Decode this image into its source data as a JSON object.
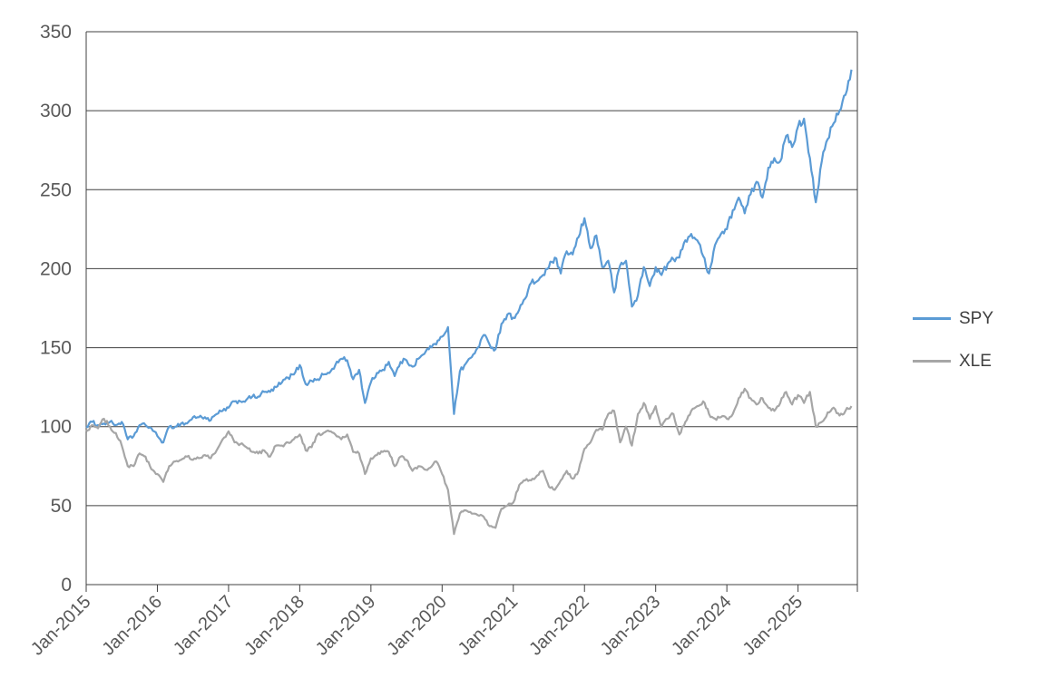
{
  "chart_data": {
    "type": "line",
    "title": "",
    "xlabel": "",
    "ylabel": "",
    "ylim": [
      0,
      350
    ],
    "y_ticks": [
      0,
      50,
      100,
      150,
      200,
      250,
      300,
      350
    ],
    "x_tick_labels": [
      "Jan-2015",
      "Jan-2016",
      "Jan-2017",
      "Jan-2018",
      "Jan-2019",
      "Jan-2020",
      "Jan-2021",
      "Jan-2022",
      "Jan-2023",
      "Jan-2024",
      "Jan-2025"
    ],
    "x_domain_months": 130,
    "grid_on": true,
    "grid_color": "#404040",
    "text_color": "#595959",
    "legend_position": "right",
    "series": [
      {
        "name": "SPY",
        "color": "#5B9BD5",
        "values": [
          100,
          103,
          101,
          102,
          103,
          101,
          103,
          92,
          94,
          101,
          101,
          99,
          94,
          90,
          100,
          100,
          102,
          102,
          106,
          106,
          106,
          104,
          108,
          110,
          112,
          116,
          116,
          117,
          119,
          119,
          122,
          122,
          125,
          128,
          131,
          133,
          139,
          127,
          129,
          130,
          133,
          134,
          139,
          143,
          142,
          130,
          136,
          115,
          128,
          134,
          136,
          141,
          132,
          141,
          142,
          138,
          143,
          146,
          151,
          152,
          157,
          163,
          108,
          135,
          140,
          144,
          150,
          158,
          152,
          149,
          165,
          171,
          169,
          174,
          181,
          191,
          192,
          196,
          201,
          207,
          197,
          211,
          209,
          220,
          232,
          213,
          221,
          201,
          205,
          185,
          202,
          205,
          176,
          183,
          201,
          189,
          201,
          196,
          203,
          206,
          207,
          218,
          222,
          218,
          208,
          197,
          215,
          222,
          225,
          237,
          245,
          235,
          247,
          255,
          245,
          264,
          270,
          268,
          284,
          277,
          290,
          295,
          270,
          242,
          268,
          282,
          292,
          300,
          310,
          326
        ]
      },
      {
        "name": "XLE",
        "color": "#A6A6A6",
        "values": [
          97,
          101,
          99,
          105,
          100,
          96,
          88,
          75,
          75,
          83,
          81,
          73,
          70,
          65,
          75,
          78,
          79,
          81,
          79,
          80,
          82,
          80,
          85,
          92,
          97,
          90,
          89,
          87,
          84,
          83,
          85,
          81,
          88,
          88,
          90,
          92,
          95,
          85,
          87,
          95,
          96,
          97,
          95,
          92,
          95,
          84,
          83,
          70,
          80,
          82,
          84,
          84,
          75,
          81,
          79,
          72,
          75,
          73,
          74,
          78,
          70,
          60,
          32,
          45,
          47,
          45,
          44,
          43,
          37,
          36,
          48,
          50,
          52,
          63,
          66,
          66,
          69,
          72,
          62,
          60,
          66,
          72,
          67,
          72,
          86,
          90,
          98,
          98,
          108,
          110,
          90,
          100,
          88,
          108,
          115,
          105,
          113,
          100,
          105,
          108,
          95,
          103,
          110,
          113,
          116,
          108,
          105,
          106,
          105,
          108,
          118,
          124,
          118,
          114,
          118,
          112,
          110,
          115,
          122,
          114,
          120,
          115,
          122,
          100,
          103,
          109,
          112,
          107,
          110,
          113
        ]
      }
    ]
  },
  "legend": {
    "items": [
      {
        "label": "SPY"
      },
      {
        "label": "XLE"
      }
    ]
  }
}
